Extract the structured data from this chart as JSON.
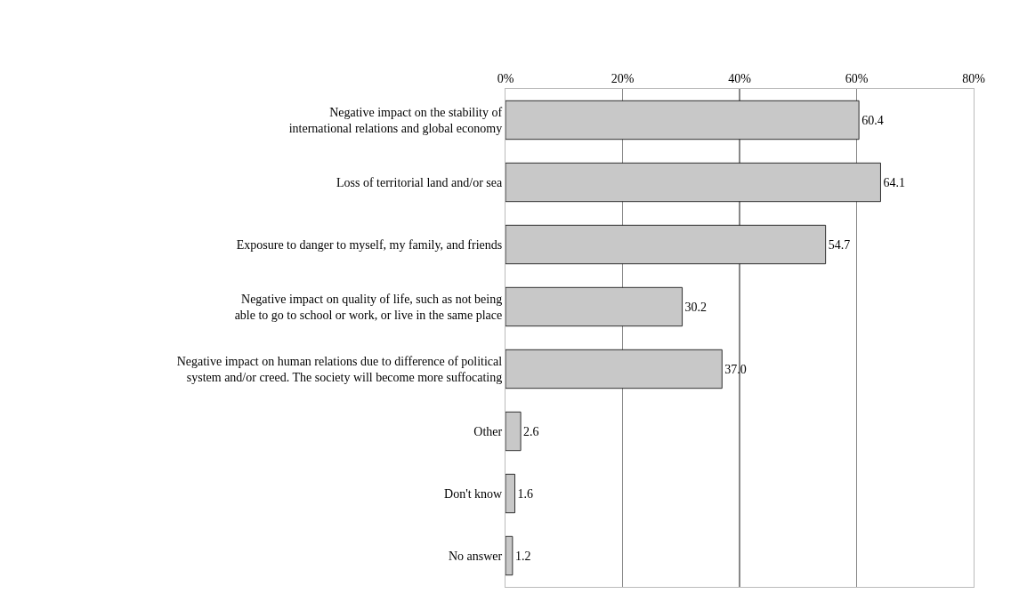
{
  "chart_data": {
    "type": "bar",
    "orientation": "horizontal",
    "categories": [
      "Negative impact on the stability of\ninternational relations and global economy",
      "Loss of territorial land and/or sea",
      "Exposure to danger to myself, my family, and friends",
      "Negative impact on quality of life, such as not being\nable to go to school or work, or live in the same place",
      "Negative impact on human relations due to difference of political\nsystem and/or creed. The society will become more suffocating",
      "Other",
      "Don't know",
      "No answer"
    ],
    "values": [
      60.4,
      64.1,
      54.7,
      30.2,
      37.0,
      2.6,
      1.6,
      1.2
    ],
    "value_labels": [
      "60.4",
      "64.1",
      "54.7",
      "30.2",
      "37.0",
      "2.6",
      "1.6",
      "1.2"
    ],
    "color": "#c8c8c8",
    "xlim": [
      0,
      80
    ],
    "xticks": [
      {
        "value": 0,
        "label": "0%"
      },
      {
        "value": 20,
        "label": "20%"
      },
      {
        "value": 40,
        "label": "40%"
      },
      {
        "value": 60,
        "label": "60%"
      },
      {
        "value": 80,
        "label": "80%"
      }
    ],
    "grid": "x",
    "legend": false
  }
}
